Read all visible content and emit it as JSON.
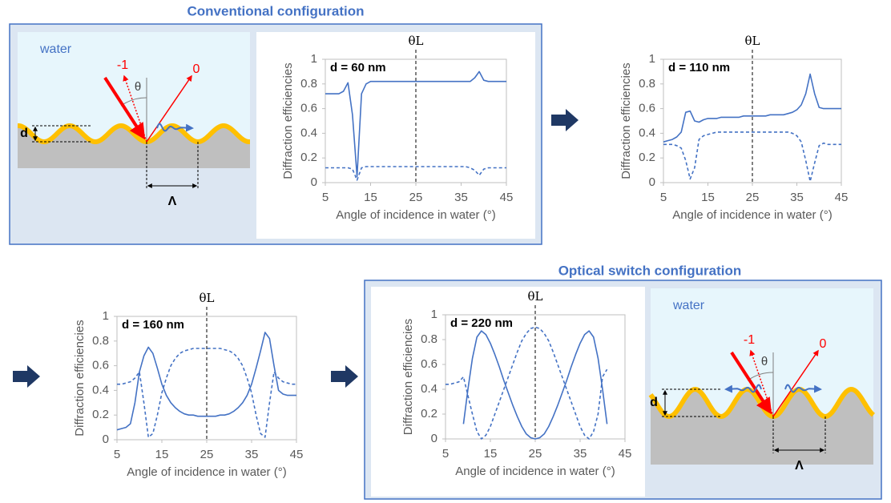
{
  "conventional_title": "Conventional configuration",
  "switch_title": "Optical switch configuration",
  "diagrams": [
    {
      "medium": "water",
      "orders": [
        "-1",
        "0"
      ],
      "angle": "θ",
      "depth": "d",
      "period": "Λ"
    },
    {
      "medium": "water",
      "orders": [
        "-1",
        "0"
      ],
      "angle": "θ",
      "depth": "d",
      "period": "Λ"
    }
  ],
  "chart_data": [
    {
      "type": "line",
      "label": "d = 60 nm",
      "marker_label": "θL",
      "marker_x": 25,
      "x_label": "Angle of incidence in water (°)",
      "y_label": "Diffraction efficiencies",
      "xlim": [
        5,
        45
      ],
      "ylim": [
        0,
        1
      ],
      "xticks": [
        5,
        15,
        25,
        35,
        45
      ],
      "yticks": [
        0,
        0.2,
        0.4,
        0.6,
        0.8,
        1
      ],
      "x": [
        5,
        6,
        7,
        8,
        9,
        10,
        11,
        12,
        13,
        14,
        15,
        16,
        17,
        18,
        19,
        20,
        21,
        22,
        23,
        24,
        25,
        26,
        27,
        28,
        29,
        30,
        31,
        32,
        33,
        34,
        35,
        36,
        37,
        38,
        39,
        40,
        41,
        42,
        43,
        44,
        45
      ],
      "series": [
        {
          "color": "#4472c4",
          "dashed": false,
          "values": [
            0.72,
            0.72,
            0.72,
            0.72,
            0.74,
            0.81,
            0.55,
            0.05,
            0.72,
            0.8,
            0.82,
            0.82,
            0.82,
            0.82,
            0.82,
            0.82,
            0.82,
            0.82,
            0.82,
            0.82,
            0.82,
            0.82,
            0.82,
            0.82,
            0.82,
            0.82,
            0.82,
            0.82,
            0.82,
            0.82,
            0.82,
            0.82,
            0.82,
            0.85,
            0.9,
            0.83,
            0.82,
            0.82,
            0.82,
            0.82,
            0.82
          ]
        },
        {
          "color": "#4472c4",
          "dashed": true,
          "values": [
            0.12,
            0.12,
            0.12,
            0.12,
            0.12,
            0.12,
            0.11,
            0.02,
            0.12,
            0.13,
            0.13,
            0.13,
            0.13,
            0.13,
            0.13,
            0.13,
            0.13,
            0.13,
            0.13,
            0.13,
            0.13,
            0.13,
            0.13,
            0.13,
            0.13,
            0.13,
            0.13,
            0.13,
            0.13,
            0.13,
            0.13,
            0.13,
            0.12,
            0.1,
            0.06,
            0.11,
            0.12,
            0.12,
            0.12,
            0.12,
            0.12
          ]
        }
      ]
    },
    {
      "type": "line",
      "label": "d = 110 nm",
      "marker_label": "θL",
      "marker_x": 25,
      "x_label": "Angle of incidence in water (°)",
      "y_label": "Diffraction efficiencies",
      "xlim": [
        5,
        45
      ],
      "ylim": [
        0,
        1
      ],
      "xticks": [
        5,
        15,
        25,
        35,
        45
      ],
      "yticks": [
        0,
        0.2,
        0.4,
        0.6,
        0.8,
        1
      ],
      "x": [
        5,
        6,
        7,
        8,
        9,
        10,
        11,
        12,
        13,
        14,
        15,
        16,
        17,
        18,
        19,
        20,
        21,
        22,
        23,
        24,
        25,
        26,
        27,
        28,
        29,
        30,
        31,
        32,
        33,
        34,
        35,
        36,
        37,
        38,
        39,
        40,
        41,
        42,
        43,
        44,
        45
      ],
      "series": [
        {
          "color": "#4472c4",
          "dashed": false,
          "values": [
            0.33,
            0.34,
            0.35,
            0.37,
            0.41,
            0.57,
            0.58,
            0.5,
            0.49,
            0.51,
            0.52,
            0.52,
            0.52,
            0.53,
            0.53,
            0.53,
            0.53,
            0.53,
            0.54,
            0.54,
            0.54,
            0.54,
            0.54,
            0.54,
            0.55,
            0.55,
            0.55,
            0.55,
            0.56,
            0.57,
            0.59,
            0.63,
            0.72,
            0.88,
            0.72,
            0.61,
            0.6,
            0.6,
            0.6,
            0.6,
            0.6
          ]
        },
        {
          "color": "#4472c4",
          "dashed": true,
          "values": [
            0.31,
            0.31,
            0.31,
            0.3,
            0.28,
            0.18,
            0.03,
            0.12,
            0.35,
            0.38,
            0.39,
            0.4,
            0.41,
            0.41,
            0.41,
            0.41,
            0.41,
            0.41,
            0.41,
            0.41,
            0.41,
            0.41,
            0.41,
            0.41,
            0.41,
            0.41,
            0.41,
            0.41,
            0.41,
            0.4,
            0.38,
            0.33,
            0.18,
            0.01,
            0.16,
            0.3,
            0.32,
            0.31,
            0.31,
            0.31,
            0.31
          ]
        }
      ]
    },
    {
      "type": "line",
      "label": "d = 160 nm",
      "marker_label": "θL",
      "marker_x": 25,
      "x_label": "Angle of incidence in water (°)",
      "y_label": "Diffraction efficiencies",
      "xlim": [
        5,
        45
      ],
      "ylim": [
        0,
        1
      ],
      "xticks": [
        5,
        15,
        25,
        35,
        45
      ],
      "yticks": [
        0,
        0.2,
        0.4,
        0.6,
        0.8,
        1
      ],
      "x": [
        5,
        6,
        7,
        8,
        9,
        10,
        11,
        12,
        13,
        14,
        15,
        16,
        17,
        18,
        19,
        20,
        21,
        22,
        23,
        24,
        25,
        26,
        27,
        28,
        29,
        30,
        31,
        32,
        33,
        34,
        35,
        36,
        37,
        38,
        39,
        40,
        41,
        42,
        43,
        44,
        45
      ],
      "series": [
        {
          "color": "#4472c4",
          "dashed": false,
          "values": [
            0.08,
            0.09,
            0.1,
            0.13,
            0.3,
            0.55,
            0.68,
            0.75,
            0.7,
            0.58,
            0.45,
            0.36,
            0.3,
            0.26,
            0.23,
            0.21,
            0.2,
            0.2,
            0.19,
            0.19,
            0.19,
            0.19,
            0.19,
            0.2,
            0.2,
            0.21,
            0.23,
            0.26,
            0.3,
            0.36,
            0.45,
            0.58,
            0.72,
            0.87,
            0.82,
            0.6,
            0.4,
            0.37,
            0.36,
            0.36,
            0.36
          ]
        },
        {
          "color": "#4472c4",
          "dashed": true,
          "values": [
            0.45,
            0.45,
            0.46,
            0.47,
            0.5,
            0.55,
            0.3,
            0.02,
            0.05,
            0.2,
            0.38,
            0.5,
            0.6,
            0.66,
            0.7,
            0.72,
            0.73,
            0.74,
            0.74,
            0.74,
            0.74,
            0.74,
            0.74,
            0.74,
            0.73,
            0.72,
            0.7,
            0.66,
            0.6,
            0.5,
            0.38,
            0.2,
            0.05,
            0.02,
            0.3,
            0.55,
            0.5,
            0.47,
            0.46,
            0.45,
            0.45
          ]
        }
      ]
    },
    {
      "type": "line",
      "label": "d = 220 nm",
      "marker_label": "θL",
      "marker_x": 25,
      "x_label": "Angle of incidence in water (°)",
      "y_label": "Diffraction efficiencies",
      "xlim": [
        5,
        45
      ],
      "ylim": [
        0,
        1
      ],
      "xticks": [
        5,
        15,
        25,
        35,
        45
      ],
      "yticks": [
        0,
        0.2,
        0.4,
        0.6,
        0.8,
        1
      ],
      "x": [
        5,
        6,
        7,
        8,
        9,
        10,
        11,
        12,
        13,
        14,
        15,
        16,
        17,
        18,
        19,
        20,
        21,
        22,
        23,
        24,
        25,
        26,
        27,
        28,
        29,
        30,
        31,
        32,
        33,
        34,
        35,
        36,
        37,
        38,
        39,
        40,
        41
      ],
      "series": [
        {
          "color": "#4472c4",
          "dashed": false,
          "values": [
            null,
            null,
            null,
            null,
            0.12,
            0.4,
            0.65,
            0.82,
            0.87,
            0.84,
            0.77,
            0.68,
            0.58,
            0.47,
            0.37,
            0.27,
            0.18,
            0.1,
            0.04,
            0.01,
            0,
            0.01,
            0.04,
            0.1,
            0.18,
            0.27,
            0.37,
            0.47,
            0.58,
            0.68,
            0.77,
            0.84,
            0.87,
            0.82,
            0.65,
            0.4,
            0.12
          ]
        },
        {
          "color": "#4472c4",
          "dashed": true,
          "values": [
            0.44,
            0.44,
            0.45,
            0.46,
            0.5,
            0.35,
            0.2,
            0.06,
            0,
            0.03,
            0.1,
            0.2,
            0.3,
            0.4,
            0.5,
            0.6,
            0.7,
            0.79,
            0.85,
            0.89,
            0.9,
            0.89,
            0.85,
            0.79,
            0.7,
            0.6,
            0.5,
            0.4,
            0.3,
            0.2,
            0.1,
            0.03,
            0,
            0.06,
            0.2,
            0.5,
            0.56
          ]
        }
      ]
    }
  ]
}
